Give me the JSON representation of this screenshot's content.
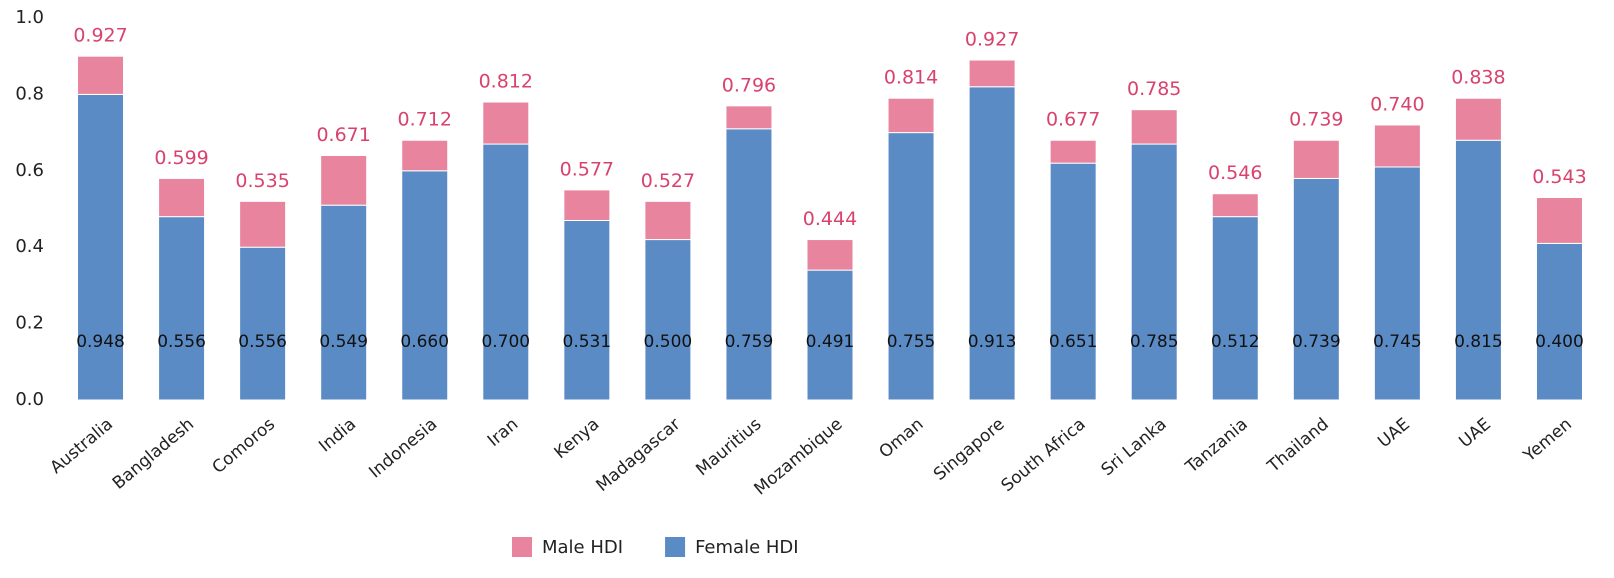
{
  "chart_data": {
    "type": "stacked_bar",
    "categories": [
      "Australia",
      "Bangladesh",
      "Comoros",
      "India",
      "Indonesia",
      "Iran",
      "Kenya",
      "Madagascar",
      "Mauritius",
      "Mozambique",
      "Oman",
      "Singapore",
      "South Africa",
      "Sri Lanka",
      "Tanzania",
      "Thailand",
      "UAE",
      "UAE",
      "Yemen"
    ],
    "series": [
      {
        "name": "Female HDI",
        "color": "#5b8bc4",
        "values": [
          0.8,
          0.48,
          0.4,
          0.51,
          0.6,
          0.67,
          0.47,
          0.42,
          0.71,
          0.34,
          0.7,
          0.82,
          0.62,
          0.67,
          0.48,
          0.58,
          0.61,
          0.68,
          0.41
        ],
        "labels": [
          "0.948",
          "0.556",
          "0.556",
          "0.549",
          "0.660",
          "0.700",
          "0.531",
          "0.500",
          "0.759",
          "0.491",
          "0.755",
          "0.913",
          "0.651",
          "0.785",
          "0.512",
          "0.739",
          "0.745",
          "0.815",
          "0.400"
        ]
      },
      {
        "name": "Male HDI",
        "color": "#e8849d",
        "values": [
          0.1,
          0.1,
          0.12,
          0.13,
          0.08,
          0.11,
          0.08,
          0.1,
          0.06,
          0.08,
          0.09,
          0.07,
          0.06,
          0.09,
          0.06,
          0.1,
          0.11,
          0.11,
          0.12
        ],
        "labels": [
          "0.927",
          "0.599",
          "0.535",
          "0.671",
          "0.712",
          "0.812",
          "0.577",
          "0.527",
          "0.796",
          "0.444",
          "0.814",
          "0.927",
          "0.677",
          "0.785",
          "0.546",
          "0.739",
          "0.740",
          "0.838",
          "0.543"
        ]
      }
    ],
    "ylim": [
      0,
      1
    ],
    "yticks": [
      {
        "value": 0,
        "label": "0.0"
      },
      0.2,
      0.4,
      0.6,
      0.8,
      {
        "value": 1,
        "label": "1.0"
      }
    ],
    "grid": false,
    "legend": "bottom"
  }
}
